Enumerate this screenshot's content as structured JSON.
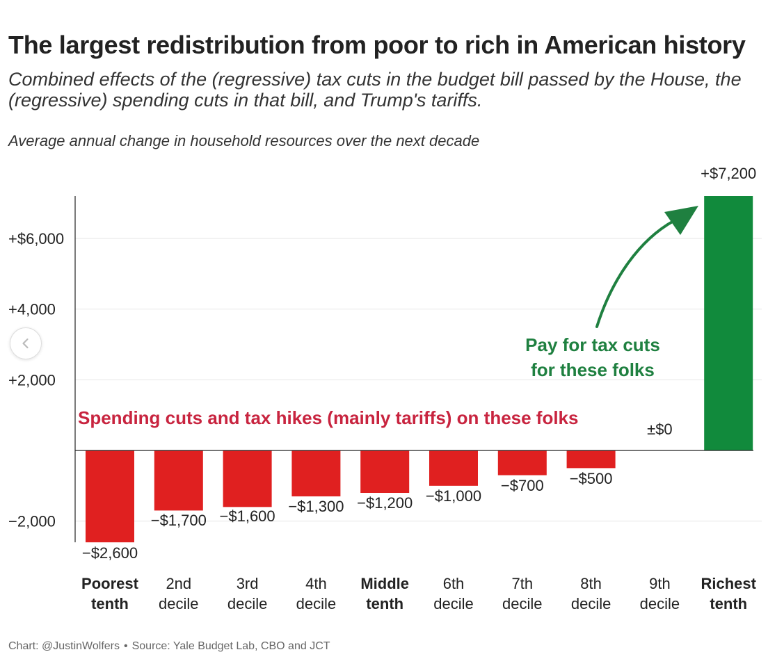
{
  "title": "The largest redistribution from poor to rich in American history",
  "subtitle": "Combined effects of the (regressive) tax cuts in the budget bill passed by the House, the (regressive) spending cuts in that bill, and Trump's tariffs.",
  "footer": {
    "credit": "Chart: @JustinWolfers",
    "separator": "•",
    "source": "Source: Yale Budget Lab, CBO and JCT"
  },
  "nav": {
    "icon": "chevron-left-icon"
  },
  "chart_data": {
    "type": "bar",
    "ylabel": "Average annual change in household resources over the next decade",
    "ylim": [
      -2600,
      7200
    ],
    "grid": true,
    "y_ticks": [
      {
        "value": 6000,
        "label": "+$6,000"
      },
      {
        "value": 4000,
        "label": "+4,000"
      },
      {
        "value": 2000,
        "label": "+2,000"
      },
      {
        "value": -2000,
        "label": "−2,000"
      }
    ],
    "categories": [
      {
        "line1": "Poorest",
        "line2": "tenth",
        "bold": true
      },
      {
        "line1": "2nd",
        "line2": "decile",
        "bold": false
      },
      {
        "line1": "3rd",
        "line2": "decile",
        "bold": false
      },
      {
        "line1": "4th",
        "line2": "decile",
        "bold": false
      },
      {
        "line1": "Middle",
        "line2": "tenth",
        "bold": true
      },
      {
        "line1": "6th",
        "line2": "decile",
        "bold": false
      },
      {
        "line1": "7th",
        "line2": "decile",
        "bold": false
      },
      {
        "line1": "8th",
        "line2": "decile",
        "bold": false
      },
      {
        "line1": "9th",
        "line2": "decile",
        "bold": false
      },
      {
        "line1": "Richest",
        "line2": "tenth",
        "bold": true
      }
    ],
    "values": [
      -2600,
      -1700,
      -1600,
      -1300,
      -1200,
      -1000,
      -700,
      -500,
      0,
      7200
    ],
    "value_labels": [
      "−$2,600",
      "−$1,700",
      "−$1,600",
      "−$1,300",
      "−$1,200",
      "−$1,000",
      "−$700",
      "−$500",
      "±$0",
      "+$7,200"
    ],
    "colors": {
      "negative": "#e02020",
      "positive": "#118a3c",
      "grid": "#e6e6e6",
      "axis": "#222222"
    },
    "annotations": [
      {
        "text": "Spending cuts and tax hikes (mainly tariffs) on these folks",
        "color": "#c8243f"
      },
      {
        "lines": [
          "Pay for tax cuts",
          "for these folks"
        ],
        "color": "#1f8040"
      }
    ]
  }
}
